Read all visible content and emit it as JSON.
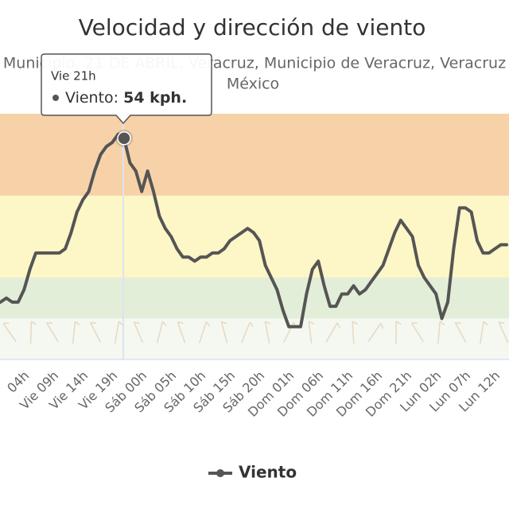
{
  "chart_data": {
    "type": "line",
    "title": "Velocidad y dirección de viento",
    "subtitle": [
      "Municipio, 21 DE ABRIL, Veracruz, Municipio de Veracruz, Veracruz",
      "México"
    ],
    "categories": [
      null,
      null,
      null,
      null,
      "04h",
      null,
      null,
      null,
      null,
      "Vie 09h",
      null,
      null,
      null,
      null,
      "Vie 14h",
      null,
      null,
      null,
      null,
      "Vie 19h",
      null,
      null,
      null,
      null,
      "Sáb 00h",
      null,
      null,
      null,
      null,
      "Sáb 05h",
      null,
      null,
      null,
      null,
      "Sáb 10h",
      null,
      null,
      null,
      null,
      "Sáb 15h",
      null,
      null,
      null,
      null,
      "Sáb 20h",
      null,
      null,
      null,
      null,
      "Dom 01h",
      null,
      null,
      null,
      null,
      "Dom 06h",
      null,
      null,
      null,
      null,
      "Dom 11h",
      null,
      null,
      null,
      null,
      "Dom 16h",
      null,
      null,
      null,
      null,
      "Dom 21h",
      null,
      null,
      null,
      null,
      "Lun 02h",
      null,
      null,
      null,
      null,
      "Lun 07h",
      null,
      null,
      null,
      null,
      "Lun 12h",
      null,
      null
    ],
    "series": [
      {
        "name": "Viento",
        "color": "#555555",
        "values": [
          14,
          15,
          14,
          14,
          17,
          22,
          26,
          26,
          26,
          26,
          26,
          27,
          31,
          36,
          39,
          41,
          46,
          50,
          52,
          53,
          55,
          54,
          48,
          46,
          41,
          46,
          41,
          35,
          32,
          30,
          27,
          25,
          25,
          24,
          25,
          25,
          26,
          26,
          27,
          29,
          30,
          31,
          32,
          31,
          29,
          23,
          20,
          17,
          12,
          8,
          8,
          8,
          16,
          22,
          24,
          18,
          13,
          13,
          16,
          16,
          18,
          16,
          17,
          19,
          21,
          23,
          27,
          31,
          34,
          32,
          30,
          23,
          20,
          18,
          16,
          10,
          14,
          27,
          37,
          37,
          36,
          29,
          26,
          26,
          27,
          28,
          28
        ]
      }
    ],
    "ylim": [
      0,
      60
    ],
    "plot_bands": [
      {
        "from": 0,
        "to": 10,
        "color": "#f5f7f1"
      },
      {
        "from": 10,
        "to": 20,
        "color": "#e3eed9"
      },
      {
        "from": 20,
        "to": 40,
        "color": "#fdf6c6"
      },
      {
        "from": 40,
        "to": 60,
        "color": "#f7d2a8"
      }
    ],
    "tooltip": {
      "title": "Vie 21h",
      "series_label": "Viento:",
      "value_label": "54 kph."
    },
    "legend": "bottom"
  }
}
